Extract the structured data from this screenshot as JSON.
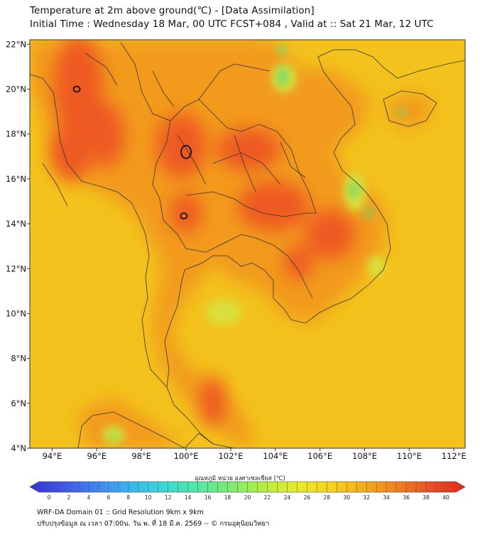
{
  "header": {
    "title_line1": "Temperature at 2m above ground(℃) - [Data Assimilation]",
    "title_line2": "Initial Time : Wednesday 18 Mar, 00 UTC FCST+084 , Valid at :: Sat 21 Mar, 12 UTC"
  },
  "map": {
    "lon_range": [
      93,
      112.5
    ],
    "lat_range": [
      4,
      22.2
    ],
    "lon_ticks": [
      "94°E",
      "96°E",
      "98°E",
      "100°E",
      "102°E",
      "104°E",
      "106°E",
      "108°E",
      "110°E",
      "112°E"
    ],
    "lon_values": [
      94,
      96,
      98,
      100,
      102,
      104,
      106,
      108,
      110,
      112
    ],
    "lat_ticks": [
      "4°N",
      "6°N",
      "8°N",
      "10°N",
      "12°N",
      "14°N",
      "16°N",
      "18°N",
      "20°N",
      "22°N"
    ],
    "lat_values": [
      4,
      6,
      8,
      10,
      12,
      14,
      16,
      18,
      20,
      22
    ],
    "colors": {
      "background": "#f3c21c",
      "land": "#f29a1f",
      "hot": "#ee5a24",
      "cool": "#d9e03a",
      "green": "#6fd86a",
      "border": "#333333"
    },
    "contour_40C_centers": [
      {
        "lon": 95.1,
        "lat": 20.0
      },
      {
        "lon": 100.0,
        "lat": 17.2
      },
      {
        "lon": 99.9,
        "lat": 14.35
      }
    ]
  },
  "colorbar": {
    "label": "อุณหภูมิ หน่วย องศาเซลเซียส (℃)",
    "min": 0,
    "max": 40,
    "ticks": [
      "0",
      "2",
      "4",
      "6",
      "8",
      "10",
      "12",
      "14",
      "16",
      "18",
      "20",
      "22",
      "24",
      "26",
      "28",
      "30",
      "32",
      "34",
      "36",
      "38",
      "40"
    ],
    "gradient": [
      "#3b32d6",
      "#3f56e8",
      "#3f86f2",
      "#38b6f0",
      "#38d9d4",
      "#50e8a4",
      "#7cec6e",
      "#b6ee3c",
      "#e7ec2a",
      "#f6d219",
      "#f5ac18",
      "#f17f1d",
      "#ea4f21",
      "#e5261f"
    ]
  },
  "footer": {
    "line1": "WRF-DA Domain 01 :: Grid Resolution 9km x 9km",
    "line2": "ปรับปรุงข้อมูล ณ เวลา 07:00น. วัน พ. ที่ 18 มี.ค. 2569 -- © กรมอุตุนิยมวิทยา"
  }
}
